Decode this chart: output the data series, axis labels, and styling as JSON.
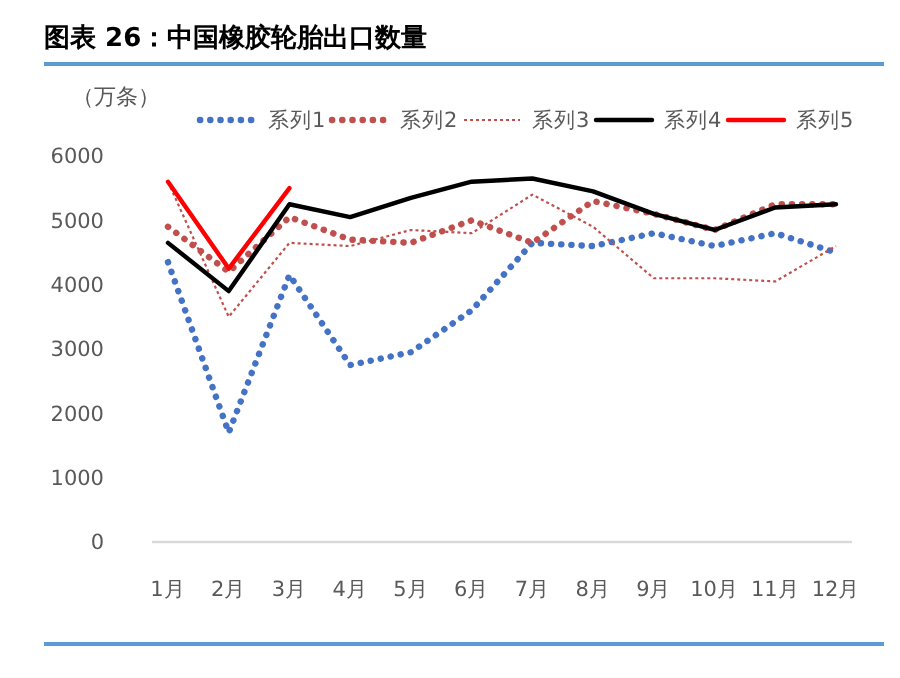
{
  "chart_data": {
    "type": "line",
    "title": "图表 26：中国橡胶轮胎出口数量",
    "ylabel": "（万条）",
    "categories": [
      "1月",
      "2月",
      "3月",
      "4月",
      "5月",
      "6月",
      "7月",
      "8月",
      "9月",
      "10月",
      "11月",
      "12月"
    ],
    "ylim": [
      0,
      6000
    ],
    "yticks": [
      0,
      1000,
      2000,
      3000,
      4000,
      5000,
      6000
    ],
    "grid": false,
    "legend": "top",
    "series": [
      {
        "name": "系列1",
        "color": "#4472c4",
        "line_style": "dotted",
        "values": [
          4350,
          1700,
          4150,
          2750,
          2950,
          3600,
          4650,
          4600,
          4800,
          4600,
          4800,
          4500
        ]
      },
      {
        "name": "系列2",
        "color": "#c0504d",
        "line_style": "dotted",
        "values": [
          4900,
          4200,
          5050,
          4700,
          4650,
          5000,
          4650,
          5300,
          5100,
          4850,
          5250,
          5250
        ]
      },
      {
        "name": "系列3",
        "color": "#c0504d",
        "line_style": "dashed",
        "values": [
          5600,
          3500,
          4650,
          4600,
          4850,
          4800,
          5400,
          4900,
          4100,
          4100,
          4050,
          4600
        ]
      },
      {
        "name": "系列4",
        "color": "#000000",
        "line_style": "solid",
        "values": [
          4650,
          3900,
          5250,
          5050,
          5350,
          5600,
          5650,
          5450,
          5100,
          4850,
          5200,
          5250
        ]
      },
      {
        "name": "系列5",
        "color": "#ff0000",
        "line_style": "solid",
        "values": [
          5600,
          4250,
          5500,
          null,
          null,
          null,
          null,
          null,
          null,
          null,
          null,
          null
        ]
      }
    ]
  }
}
